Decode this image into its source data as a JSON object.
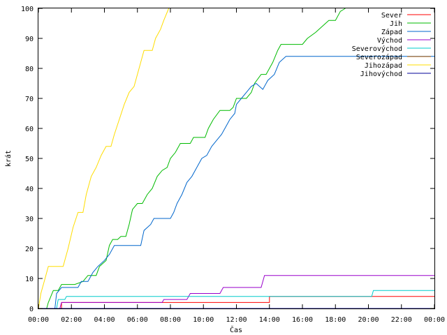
{
  "chart_data": {
    "type": "line",
    "title": "",
    "xlabel": "Čas",
    "ylabel": "krát",
    "x_ticks": [
      "00:00",
      "02:00",
      "04:00",
      "06:00",
      "08:00",
      "10:00",
      "12:00",
      "14:00",
      "16:00",
      "18:00",
      "20:00",
      "22:00",
      "00:00"
    ],
    "x_unit": "hours",
    "xlim": [
      0,
      24
    ],
    "ylim": [
      0,
      100
    ],
    "y_ticks": [
      0,
      10,
      20,
      30,
      40,
      50,
      60,
      70,
      80,
      90,
      100
    ],
    "grid": false,
    "legend_position": "top-right",
    "series": [
      {
        "name": "Sever",
        "color": "#ff0000",
        "points": [
          [
            0,
            0
          ],
          [
            1.4,
            0
          ],
          [
            1.4,
            2
          ],
          [
            14.0,
            2
          ],
          [
            14.0,
            4
          ],
          [
            24,
            4
          ]
        ]
      },
      {
        "name": "Jih",
        "color": "#00bb00",
        "points": [
          [
            0,
            0
          ],
          [
            0.5,
            0
          ],
          [
            0.6,
            2
          ],
          [
            0.9,
            6
          ],
          [
            1.2,
            6
          ],
          [
            1.4,
            8
          ],
          [
            2.2,
            8
          ],
          [
            2.7,
            9
          ],
          [
            3.0,
            11
          ],
          [
            3.5,
            11
          ],
          [
            3.7,
            14
          ],
          [
            4.1,
            16
          ],
          [
            4.3,
            21
          ],
          [
            4.5,
            23
          ],
          [
            4.8,
            23
          ],
          [
            5.0,
            24
          ],
          [
            5.3,
            24
          ],
          [
            5.5,
            28
          ],
          [
            5.7,
            33
          ],
          [
            6.0,
            35
          ],
          [
            6.3,
            35
          ],
          [
            6.6,
            38
          ],
          [
            6.9,
            40
          ],
          [
            7.2,
            44
          ],
          [
            7.5,
            46
          ],
          [
            7.8,
            47
          ],
          [
            8.0,
            50
          ],
          [
            8.3,
            52
          ],
          [
            8.6,
            55
          ],
          [
            9.2,
            55
          ],
          [
            9.4,
            57
          ],
          [
            10.1,
            57
          ],
          [
            10.3,
            60
          ],
          [
            10.6,
            63
          ],
          [
            11.0,
            66
          ],
          [
            11.6,
            66
          ],
          [
            11.8,
            67
          ],
          [
            12.0,
            70
          ],
          [
            12.6,
            70
          ],
          [
            12.9,
            72
          ],
          [
            13.1,
            75
          ],
          [
            13.5,
            78
          ],
          [
            13.8,
            78
          ],
          [
            14.2,
            82
          ],
          [
            14.5,
            86
          ],
          [
            14.7,
            88
          ],
          [
            16.0,
            88
          ],
          [
            16.3,
            90
          ],
          [
            16.8,
            92
          ],
          [
            17.2,
            94
          ],
          [
            17.6,
            96
          ],
          [
            18.0,
            96
          ],
          [
            18.3,
            99
          ],
          [
            18.6,
            100
          ]
        ]
      },
      {
        "name": "Západ",
        "color": "#0066cc",
        "points": [
          [
            0,
            0
          ],
          [
            1.0,
            0
          ],
          [
            1.1,
            5
          ],
          [
            1.4,
            7
          ],
          [
            2.4,
            7
          ],
          [
            2.6,
            9
          ],
          [
            3.0,
            9
          ],
          [
            3.3,
            12
          ],
          [
            3.6,
            14
          ],
          [
            4.0,
            16
          ],
          [
            4.3,
            18
          ],
          [
            4.6,
            21
          ],
          [
            6.2,
            21
          ],
          [
            6.4,
            26
          ],
          [
            6.8,
            28
          ],
          [
            7.0,
            30
          ],
          [
            8.0,
            30
          ],
          [
            8.2,
            32
          ],
          [
            8.4,
            35
          ],
          [
            8.7,
            38
          ],
          [
            9.0,
            42
          ],
          [
            9.3,
            44
          ],
          [
            9.6,
            47
          ],
          [
            9.9,
            50
          ],
          [
            10.2,
            51
          ],
          [
            10.5,
            54
          ],
          [
            10.8,
            56
          ],
          [
            11.1,
            58
          ],
          [
            11.3,
            60
          ],
          [
            11.6,
            63
          ],
          [
            11.9,
            65
          ],
          [
            12.0,
            68
          ],
          [
            12.3,
            70
          ],
          [
            12.6,
            72
          ],
          [
            12.9,
            74
          ],
          [
            13.2,
            75
          ],
          [
            13.6,
            73
          ],
          [
            13.9,
            76
          ],
          [
            14.3,
            78
          ],
          [
            14.6,
            82
          ],
          [
            15.0,
            84
          ],
          [
            24,
            84
          ]
        ]
      },
      {
        "name": "Východ",
        "color": "#9900cc",
        "points": [
          [
            0,
            0
          ],
          [
            1.3,
            0
          ],
          [
            1.4,
            2
          ],
          [
            7.5,
            2
          ],
          [
            7.6,
            3
          ],
          [
            9.0,
            3
          ],
          [
            9.2,
            5
          ],
          [
            11.0,
            5
          ],
          [
            11.2,
            7
          ],
          [
            13.5,
            7
          ],
          [
            13.7,
            11
          ],
          [
            24,
            11
          ]
        ]
      },
      {
        "name": "Severovýchod",
        "color": "#00cccc",
        "points": [
          [
            0,
            0
          ],
          [
            1.1,
            0
          ],
          [
            1.2,
            3
          ],
          [
            1.6,
            3
          ],
          [
            1.7,
            4
          ],
          [
            20.2,
            4
          ],
          [
            20.3,
            6
          ],
          [
            24,
            6
          ]
        ]
      },
      {
        "name": "Severozápad",
        "color": "#aa5500",
        "points": [
          [
            0,
            0
          ],
          [
            24,
            0
          ]
        ]
      },
      {
        "name": "Jihozápad",
        "color": "#ffdd00",
        "points": [
          [
            0,
            0
          ],
          [
            0.15,
            5
          ],
          [
            0.4,
            10
          ],
          [
            0.6,
            14
          ],
          [
            1.5,
            14
          ],
          [
            1.8,
            20
          ],
          [
            2.1,
            27
          ],
          [
            2.4,
            32
          ],
          [
            2.7,
            32
          ],
          [
            2.9,
            38
          ],
          [
            3.2,
            44
          ],
          [
            3.5,
            47
          ],
          [
            3.8,
            51
          ],
          [
            4.1,
            54
          ],
          [
            4.4,
            54
          ],
          [
            4.6,
            58
          ],
          [
            4.9,
            63
          ],
          [
            5.2,
            68
          ],
          [
            5.5,
            72
          ],
          [
            5.8,
            74
          ],
          [
            6.1,
            80
          ],
          [
            6.4,
            86
          ],
          [
            6.9,
            86
          ],
          [
            7.1,
            90
          ],
          [
            7.4,
            93
          ],
          [
            7.6,
            96
          ],
          [
            7.9,
            100
          ]
        ]
      },
      {
        "name": "Jihovýchod",
        "color": "#000099",
        "points": [
          [
            0,
            0
          ],
          [
            24,
            0
          ]
        ]
      }
    ]
  }
}
